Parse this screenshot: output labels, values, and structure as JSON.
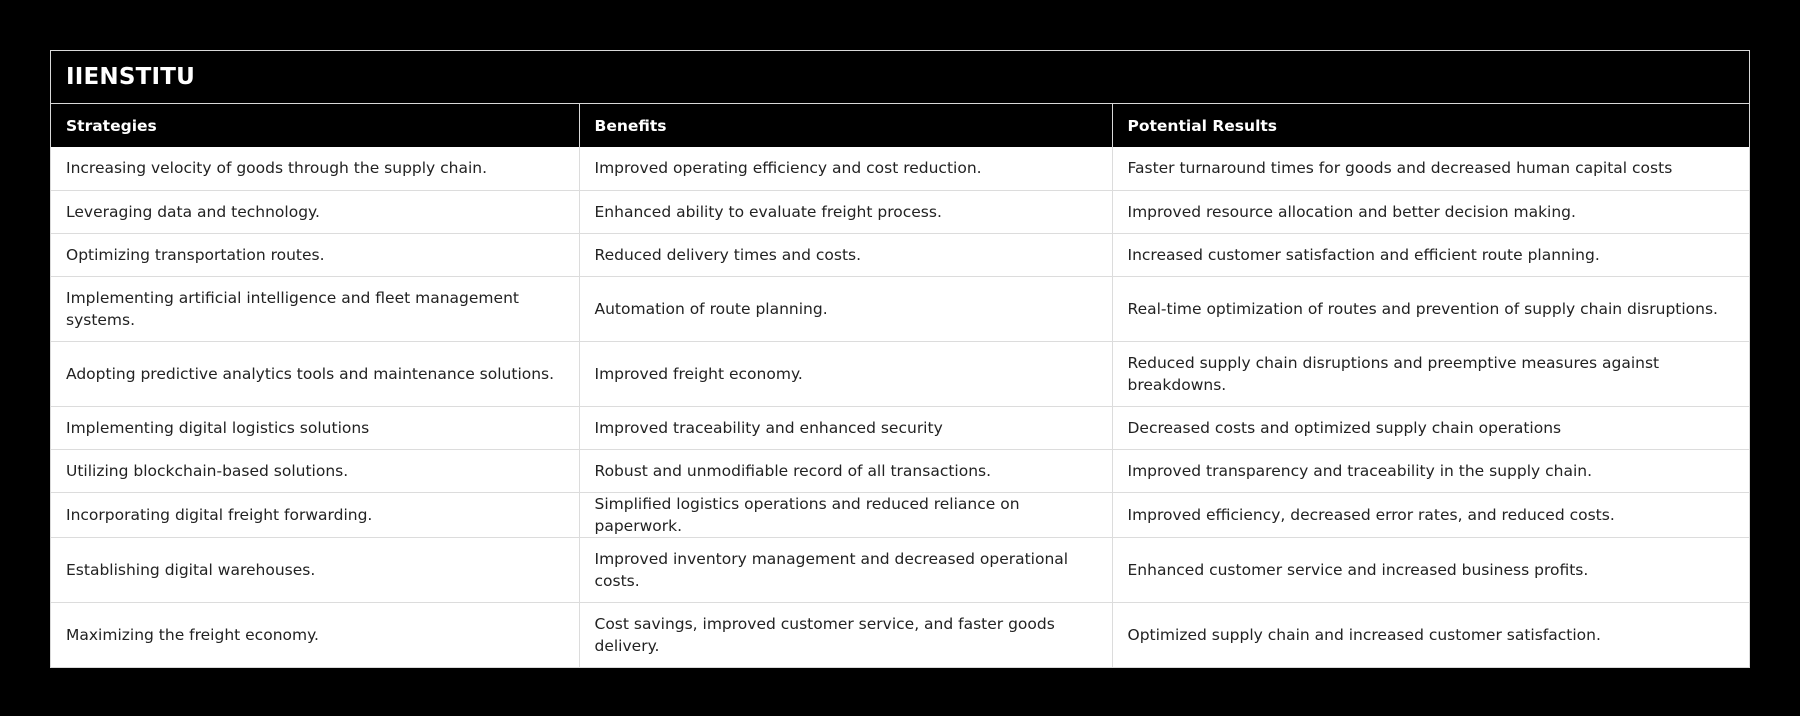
{
  "table": {
    "title": "IIENSTITU",
    "columns": [
      "Strategies",
      "Benefits",
      "Potential Results"
    ],
    "rows": [
      {
        "strategy": "Increasing velocity of goods through the supply chain.",
        "benefit": "Improved operating efficiency and cost reduction.",
        "result": "Faster turnaround times for goods and decreased human capital costs"
      },
      {
        "strategy": "Leveraging data and technology.",
        "benefit": "Enhanced ability to evaluate freight process.",
        "result": "Improved resource allocation and better decision making."
      },
      {
        "strategy": "Optimizing transportation routes.",
        "benefit": "Reduced delivery times and costs.",
        "result": "Increased customer satisfaction and efficient route planning."
      },
      {
        "strategy": "Implementing artificial intelligence and fleet management systems.",
        "benefit": "Automation of route planning.",
        "result": "Real-time optimization of routes and prevention of supply chain disruptions."
      },
      {
        "strategy": "Adopting predictive analytics tools and maintenance solutions.",
        "benefit": "Improved freight economy.",
        "result": "Reduced supply chain disruptions and preemptive measures against breakdowns."
      },
      {
        "strategy": "Implementing digital logistics solutions",
        "benefit": "Improved traceability and enhanced security",
        "result": "Decreased costs and optimized supply chain operations"
      },
      {
        "strategy": "Utilizing blockchain-based solutions.",
        "benefit": "Robust and unmodifiable record of all transactions.",
        "result": "Improved transparency and traceability in the supply chain."
      },
      {
        "strategy": "Incorporating digital freight forwarding.",
        "benefit": "Simplified logistics operations and reduced reliance on paperwork.",
        "result": "Improved efficiency, decreased error rates, and reduced costs."
      },
      {
        "strategy": "Establishing digital warehouses.",
        "benefit": "Improved inventory management and decreased operational costs.",
        "result": "Enhanced customer service and increased business profits."
      },
      {
        "strategy": "Maximizing the freight economy.",
        "benefit": "Cost savings, improved customer service, and faster goods delivery.",
        "result": "Optimized supply chain and increased customer satisfaction."
      }
    ]
  }
}
